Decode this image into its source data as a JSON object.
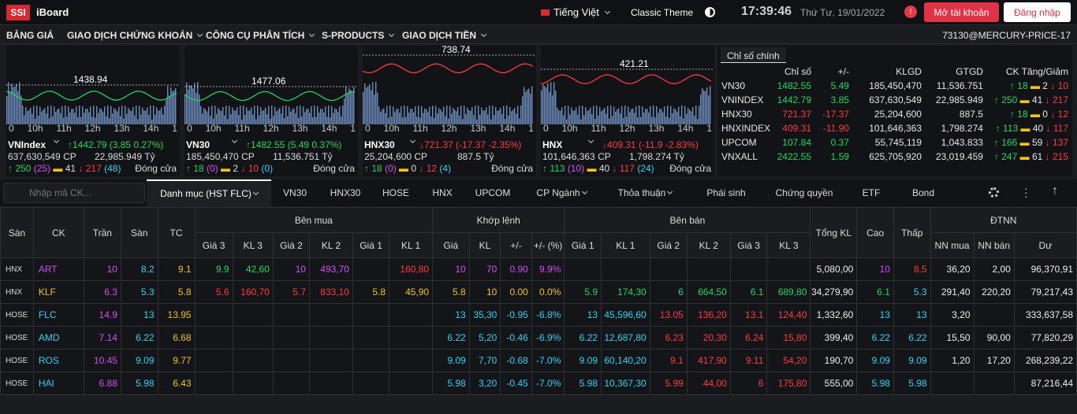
{
  "header": {
    "logo": "SSI",
    "brand": "iBoard",
    "language": "Tiếng Việt",
    "theme": "Classic Theme",
    "clock": "17:39:46",
    "date": "Thứ Tư, 19/01/2022",
    "open_account": "Mở tài khoản",
    "login": "Đăng nhập"
  },
  "menu": {
    "items": [
      "BẢNG GIÁ",
      "GIAO DỊCH CHỨNG KHOÁN",
      "CÔNG CỤ PHÂN TÍCH",
      "S-PRODUCTS",
      "GIAO DỊCH TIỀN"
    ],
    "account": "73130@MERCURY-PRICE-17"
  },
  "hours": [
    "0",
    "10h",
    "11h",
    "12h",
    "13h",
    "14h",
    "1"
  ],
  "indices": [
    {
      "ref": "1438.94",
      "name": "VNIndex",
      "change": "1442.79 (3.85  0.27%)",
      "dir": "up",
      "vol": "637,630,549 CP",
      "val": "22,985.949 Tỷ",
      "up": "250",
      "ceil": "(25)",
      "flat": "41",
      "down": "217",
      "floor": "(48)",
      "status": "Đóng cửa"
    },
    {
      "ref": "1477.06",
      "name": "VN30",
      "change": "1482.55 (5.49  0.37%)",
      "dir": "up",
      "vol": "185,450,470 CP",
      "val": "11,536.751 Tỷ",
      "up": "18",
      "ceil": "(0)",
      "flat": "2",
      "down": "10",
      "floor": "(0)",
      "status": "Đóng cửa"
    },
    {
      "ref": "738.74",
      "name": "HNX30",
      "change": "721.37 (-17.37  -2.35%)",
      "dir": "down",
      "vol": "25,204,600 CP",
      "val": "887.5 Tỷ",
      "up": "18",
      "ceil": "(0)",
      "flat": "0",
      "down": "12",
      "floor": "(4)",
      "status": "Đóng cửa"
    },
    {
      "ref": "421.21",
      "name": "HNX",
      "change": "409.31 (-11.9  -2.83%)",
      "dir": "down",
      "vol": "101,646,363 CP",
      "val": "1,798.274 Tỷ",
      "up": "113",
      "ceil": "(10)",
      "flat": "40",
      "down": "117",
      "floor": "(24)",
      "status": "Đóng cửa"
    }
  ],
  "stats": {
    "tab": "Chỉ số chính",
    "headers": [
      "",
      "Chỉ số",
      "+/-",
      "KLGD",
      "GTGD",
      "CK Tăng/Giảm"
    ],
    "rows": [
      {
        "name": "VN30",
        "idx": "1482.55",
        "chg": "5.49",
        "vol": "185,450,470",
        "val": "11,536.751",
        "up": "18",
        "flat": "2",
        "down": "10",
        "dir": "up"
      },
      {
        "name": "VNINDEX",
        "idx": "1442.79",
        "chg": "3.85",
        "vol": "637,630,549",
        "val": "22,985.949",
        "up": "250",
        "flat": "41",
        "down": "217",
        "dir": "up"
      },
      {
        "name": "HNX30",
        "idx": "721.37",
        "chg": "-17.37",
        "vol": "25,204,600",
        "val": "887.5",
        "up": "18",
        "flat": "0",
        "down": "12",
        "dir": "down"
      },
      {
        "name": "HNXINDEX",
        "idx": "409.31",
        "chg": "-11.90",
        "vol": "101,646,363",
        "val": "1,798.274",
        "up": "113",
        "flat": "40",
        "down": "117",
        "dir": "down"
      },
      {
        "name": "UPCOM",
        "idx": "107.84",
        "chg": "0.37",
        "vol": "55,745,119",
        "val": "1,043.833",
        "up": "166",
        "flat": "59",
        "down": "137",
        "dir": "up"
      },
      {
        "name": "VNXALL",
        "idx": "2422.55",
        "chg": "1.59",
        "vol": "625,705,920",
        "val": "23,019.459",
        "up": "247",
        "flat": "61",
        "down": "215",
        "dir": "up"
      }
    ]
  },
  "tabs": {
    "search_placeholder": "Nhập mã CK...",
    "items": [
      "Danh mục (HST FLC)",
      "VN30",
      "HNX30",
      "HOSE",
      "HNX",
      "UPCOM",
      "CP Ngành",
      "Thỏa thuận",
      "Phái sinh",
      "Chứng quyền",
      "ETF",
      "Bond"
    ]
  },
  "table": {
    "group_headers": {
      "buy": "Bên mua",
      "match": "Khớp lệnh",
      "sell": "Bên bán",
      "foreign": "ĐTNN"
    },
    "headers": {
      "san": "Sàn",
      "ck": "CK",
      "tran": "Trần",
      "sanp": "Sàn",
      "tc": "TC",
      "g3": "Giá 3",
      "kl3": "KL 3",
      "g2": "Giá 2",
      "kl2": "KL 2",
      "g1": "Giá 1",
      "kl1": "KL 1",
      "mg": "Giá",
      "mkl": "KL",
      "mchg": "+/-",
      "mpct": "+/- (%)",
      "sg1": "Giá 1",
      "skl1": "KL 1",
      "sg2": "Giá 2",
      "skl2": "KL 2",
      "sg3": "Giá 3",
      "skl3": "KL 3",
      "tkl": "Tổng KL",
      "cao": "Cao",
      "thap": "Thấp",
      "nnm": "NN mua",
      "nnb": "NN bán",
      "du": "Dư"
    },
    "rows": [
      {
        "exch": "HNX",
        "ck": "ART",
        "c": "purple",
        "tran": "10",
        "san": "8.2",
        "tc": "9.1",
        "b3": "9.9",
        "bk3": "42,60",
        "b3c": "green",
        "b2": "10",
        "bk2": "493,70",
        "b2c": "purple",
        "b1": "",
        "bk1": "160,80",
        "b1c": "red",
        "m": "10",
        "mk": "70",
        "mc": "0.90",
        "mp": "9.9%",
        "s1": "",
        "sk1": "",
        "s1c": "",
        "s2": "",
        "sk2": "",
        "s2c": "",
        "s3": "",
        "sk3": "",
        "s3c": "",
        "tkl": "5,080,00",
        "cao": "10",
        "caoc": "purple",
        "thap": "8.5",
        "thapc": "red",
        "nnm": "36,20",
        "nnb": "2,00",
        "du": "96,370,91"
      },
      {
        "exch": "HNX",
        "ck": "KLF",
        "c": "yellow",
        "tran": "6.3",
        "san": "5.3",
        "tc": "5.8",
        "b3": "5.6",
        "bk3": "160,70",
        "b3c": "red",
        "b2": "5.7",
        "bk2": "833,10",
        "b2c": "red",
        "b1": "5.8",
        "bk1": "45,90",
        "b1c": "yellow",
        "m": "5.8",
        "mk": "10",
        "mc": "0.00",
        "mp": "0.0%",
        "s1": "5.9",
        "sk1": "174,30",
        "s1c": "green",
        "s2": "6",
        "sk2": "664,50",
        "s2c": "green",
        "s3": "6.1",
        "sk3": "689,80",
        "s3c": "green",
        "tkl": "34,279,90",
        "cao": "6.1",
        "caoc": "green",
        "thap": "5.3",
        "thapc": "cyan",
        "nnm": "291,40",
        "nnb": "220,20",
        "du": "79,217,43"
      },
      {
        "exch": "HOSE",
        "ck": "FLC",
        "c": "cyan",
        "tran": "14.9",
        "san": "13",
        "tc": "13.95",
        "b3": "",
        "bk3": "",
        "b3c": "",
        "b2": "",
        "bk2": "",
        "b2c": "",
        "b1": "",
        "bk1": "",
        "b1c": "",
        "m": "13",
        "mk": "35,30",
        "mc": "-0.95",
        "mp": "-6.8%",
        "s1": "13",
        "sk1": "45,596,60",
        "s1c": "cyan",
        "s2": "13.05",
        "sk2": "136,20",
        "s2c": "red",
        "s3": "13.1",
        "sk3": "124,40",
        "s3c": "red",
        "tkl": "1,332,60",
        "cao": "13",
        "caoc": "cyan",
        "thap": "13",
        "thapc": "cyan",
        "nnm": "3,20",
        "nnb": "",
        "du": "333,637,58"
      },
      {
        "exch": "HOSE",
        "ck": "AMD",
        "c": "cyan",
        "tran": "7.14",
        "san": "6.22",
        "tc": "6.68",
        "b3": "",
        "bk3": "",
        "b3c": "",
        "b2": "",
        "bk2": "",
        "b2c": "",
        "b1": "",
        "bk1": "",
        "b1c": "",
        "m": "6.22",
        "mk": "5,20",
        "mc": "-0.46",
        "mp": "-6.9%",
        "s1": "6.22",
        "sk1": "12,687,80",
        "s1c": "cyan",
        "s2": "6.23",
        "sk2": "20,30",
        "s2c": "red",
        "s3": "6.24",
        "sk3": "15,80",
        "s3c": "red",
        "tkl": "399,40",
        "cao": "6.22",
        "caoc": "cyan",
        "thap": "6.22",
        "thapc": "cyan",
        "nnm": "15,50",
        "nnb": "90,00",
        "du": "77,820,29"
      },
      {
        "exch": "HOSE",
        "ck": "ROS",
        "c": "cyan",
        "tran": "10.45",
        "san": "9.09",
        "tc": "9.77",
        "b3": "",
        "bk3": "",
        "b3c": "",
        "b2": "",
        "bk2": "",
        "b2c": "",
        "b1": "",
        "bk1": "",
        "b1c": "",
        "m": "9.09",
        "mk": "7,70",
        "mc": "-0.68",
        "mp": "-7.0%",
        "s1": "9.09",
        "sk1": "60,140,20",
        "s1c": "cyan",
        "s2": "9.1",
        "sk2": "417,90",
        "s2c": "red",
        "s3": "9.11",
        "sk3": "54,20",
        "s3c": "red",
        "tkl": "190,70",
        "cao": "9.09",
        "caoc": "cyan",
        "thap": "9.09",
        "thapc": "cyan",
        "nnm": "1,20",
        "nnb": "17,20",
        "du": "268,239,22"
      },
      {
        "exch": "HOSE",
        "ck": "HAI",
        "c": "cyan",
        "tran": "6.88",
        "san": "5.98",
        "tc": "6.43",
        "b3": "",
        "bk3": "",
        "b3c": "",
        "b2": "",
        "bk2": "",
        "b2c": "",
        "b1": "",
        "bk1": "",
        "b1c": "",
        "m": "5.98",
        "mk": "3,20",
        "mc": "-0.45",
        "mp": "-7.0%",
        "s1": "5.98",
        "sk1": "10,367,30",
        "s1c": "cyan",
        "s2": "5.99",
        "sk2": "44,00",
        "s2c": "red",
        "s3": "6",
        "sk3": "175,80",
        "s3c": "red",
        "tkl": "555,00",
        "cao": "5.98",
        "caoc": "cyan",
        "thap": "5.98",
        "thapc": "cyan",
        "nnm": "",
        "nnb": "",
        "du": "87,216,44"
      }
    ]
  }
}
